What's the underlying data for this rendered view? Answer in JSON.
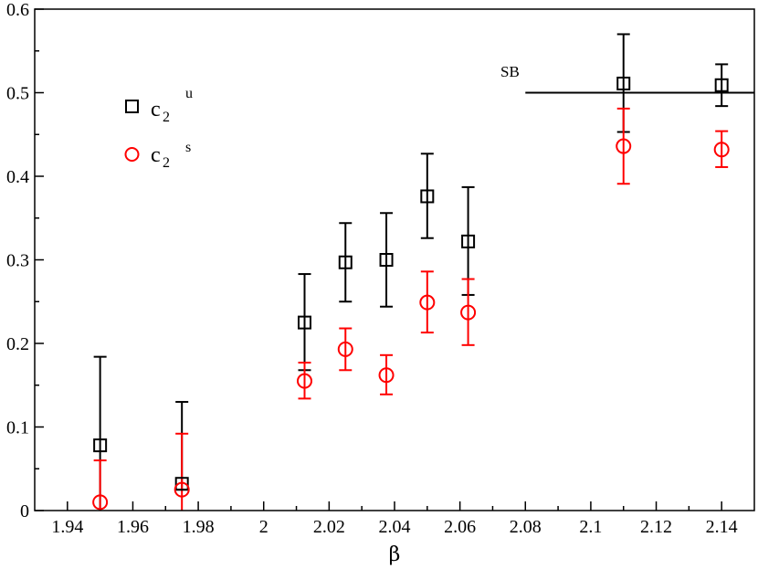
{
  "chart_data": {
    "type": "scatter",
    "title": "",
    "xlabel": "β",
    "ylabel": "",
    "xlim": [
      1.93,
      2.15
    ],
    "ylim": [
      0,
      0.6
    ],
    "grid": false,
    "legend_position": "top-left",
    "x_ticks": [
      "1.94",
      "1.96",
      "1.98",
      "2",
      "2.02",
      "2.04",
      "2.06",
      "2.08",
      "2.1",
      "2.12",
      "2.14"
    ],
    "y_ticks": [
      "0",
      "0.1",
      "0.2",
      "0.3",
      "0.4",
      "0.5",
      "0.6"
    ],
    "series": [
      {
        "name_base": "c",
        "name_sub": "2",
        "name_sup": "u",
        "marker": "square",
        "color": "#000000",
        "points": [
          {
            "x": 1.95,
            "y": 0.078,
            "err_low": 0.0,
            "err_high": 0.184
          },
          {
            "x": 1.975,
            "y": 0.032,
            "err_low": 0.025,
            "err_high": 0.13
          },
          {
            "x": 2.0125,
            "y": 0.225,
            "err_low": 0.168,
            "err_high": 0.283
          },
          {
            "x": 2.025,
            "y": 0.297,
            "err_low": 0.25,
            "err_high": 0.344
          },
          {
            "x": 2.0375,
            "y": 0.3,
            "err_low": 0.244,
            "err_high": 0.356
          },
          {
            "x": 2.05,
            "y": 0.376,
            "err_low": 0.326,
            "err_high": 0.427
          },
          {
            "x": 2.0625,
            "y": 0.322,
            "err_low": 0.258,
            "err_high": 0.387
          },
          {
            "x": 2.11,
            "y": 0.511,
            "err_low": 0.453,
            "err_high": 0.57
          },
          {
            "x": 2.14,
            "y": 0.509,
            "err_low": 0.484,
            "err_high": 0.534
          }
        ]
      },
      {
        "name_base": "c",
        "name_sub": "2",
        "name_sup": "s",
        "marker": "circle",
        "color": "#ff0000",
        "points": [
          {
            "x": 1.95,
            "y": 0.01,
            "err_low": 0.0,
            "err_high": 0.06
          },
          {
            "x": 1.975,
            "y": 0.025,
            "err_low": 0.0,
            "err_high": 0.092
          },
          {
            "x": 2.0125,
            "y": 0.155,
            "err_low": 0.134,
            "err_high": 0.177
          },
          {
            "x": 2.025,
            "y": 0.193,
            "err_low": 0.168,
            "err_high": 0.218
          },
          {
            "x": 2.0375,
            "y": 0.162,
            "err_low": 0.139,
            "err_high": 0.186
          },
          {
            "x": 2.05,
            "y": 0.249,
            "err_low": 0.213,
            "err_high": 0.286
          },
          {
            "x": 2.0625,
            "y": 0.237,
            "err_low": 0.198,
            "err_high": 0.277
          },
          {
            "x": 2.11,
            "y": 0.436,
            "err_low": 0.391,
            "err_high": 0.481
          },
          {
            "x": 2.14,
            "y": 0.432,
            "err_low": 0.411,
            "err_high": 0.454
          }
        ]
      }
    ],
    "reference_line": {
      "label": "SB",
      "y": 0.5,
      "x_start": 2.08,
      "x_end": 2.15,
      "color": "#000000"
    }
  }
}
